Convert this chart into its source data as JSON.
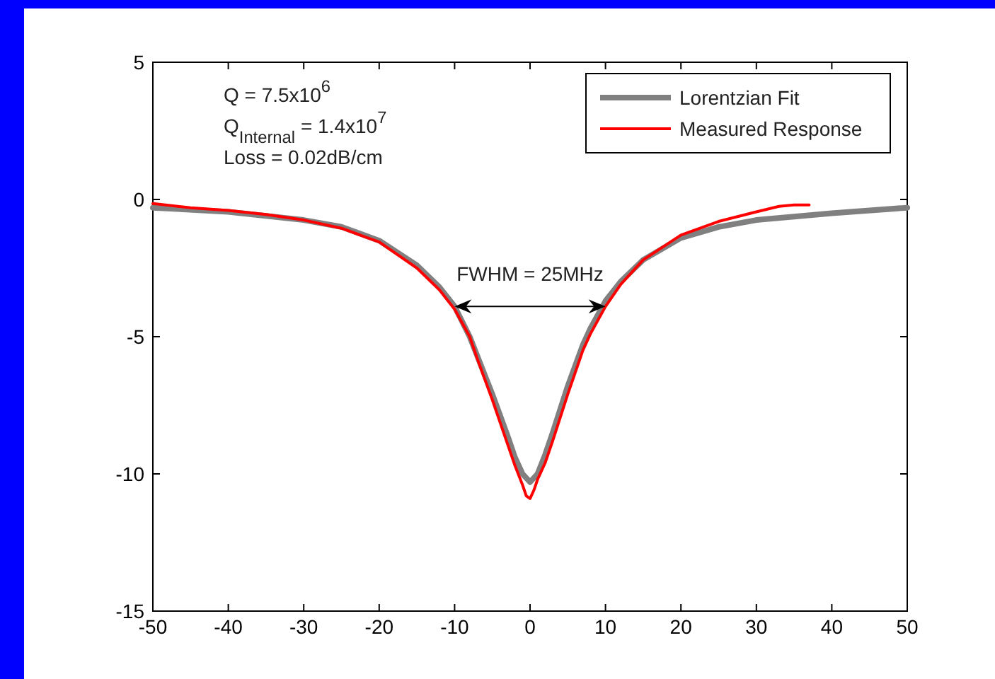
{
  "chart_data": {
    "type": "line",
    "xlim": [
      -50,
      50
    ],
    "xticks": [
      -50,
      -40,
      -30,
      -20,
      -10,
      0,
      10,
      20,
      30,
      40,
      50
    ],
    "ylim": [
      -15,
      5
    ],
    "yticks": [
      -15,
      -10,
      -5,
      0,
      5
    ],
    "grid": false,
    "legend": "top right",
    "line_style": "solid",
    "marker": "none",
    "annotations": [
      "Q = 7.5x10$^{6}$",
      "Q$_{Internal}$ = 1.4x10$^{7}$",
      "Loss = 0.02dB/cm",
      "FWHM = 25MHz"
    ],
    "series": [
      {
        "name": "Lorentzian Fit",
        "color": "#808080",
        "x": [
          -50,
          -40,
          -30,
          -25,
          -20,
          -15,
          -12,
          -10,
          -8,
          -7,
          -5,
          -3,
          -2,
          -1,
          0,
          1,
          2,
          3,
          5,
          7,
          8,
          10,
          12,
          15,
          20,
          25,
          30,
          40,
          50
        ],
        "values": [
          -0.3,
          -0.45,
          -0.75,
          -1.0,
          -1.5,
          -2.4,
          -3.2,
          -3.9,
          -5.0,
          -5.7,
          -7.1,
          -8.6,
          -9.4,
          -10.0,
          -10.3,
          -10.0,
          -9.3,
          -8.5,
          -6.8,
          -5.3,
          -4.7,
          -3.7,
          -3.0,
          -2.2,
          -1.4,
          -1.0,
          -0.75,
          -0.5,
          -0.3
        ]
      },
      {
        "name": "Measured Response",
        "color": "#ff0000",
        "x": [
          -50,
          -45,
          -40,
          -35,
          -30,
          -25,
          -20,
          -15,
          -12,
          -10,
          -8,
          -7,
          -5,
          -3,
          -2,
          -1,
          -0.5,
          0,
          0.5,
          1,
          2,
          3,
          5,
          7,
          8,
          10,
          12,
          15,
          20,
          25,
          30,
          33,
          35,
          37
        ],
        "values": [
          -0.15,
          -0.3,
          -0.4,
          -0.55,
          -0.75,
          -1.05,
          -1.55,
          -2.5,
          -3.3,
          -4.0,
          -5.0,
          -5.8,
          -7.3,
          -8.9,
          -9.7,
          -10.4,
          -10.8,
          -10.9,
          -10.6,
          -10.2,
          -9.6,
          -8.8,
          -7.1,
          -5.5,
          -4.9,
          -3.9,
          -3.1,
          -2.2,
          -1.3,
          -0.8,
          -0.45,
          -0.25,
          -0.2,
          -0.2
        ]
      }
    ]
  }
}
